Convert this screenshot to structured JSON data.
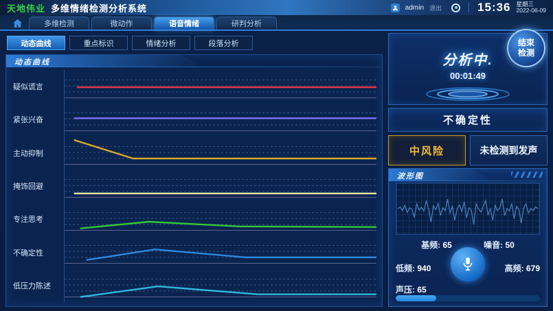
{
  "header": {
    "logo": "天地伟业",
    "title": "多维情绪检测分析系统",
    "user": "admin",
    "logout": "退出",
    "time": "15:36",
    "weekday": "星期三",
    "date": "2022-06-09"
  },
  "main_tabs": [
    {
      "label": "多维检测",
      "active": false
    },
    {
      "label": "微动作",
      "active": false
    },
    {
      "label": "语音情绪",
      "active": true
    },
    {
      "label": "研判分析",
      "active": false
    }
  ],
  "sub_tabs": [
    {
      "label": "动态曲线",
      "active": true
    },
    {
      "label": "重点标识",
      "active": false
    },
    {
      "label": "情绪分析",
      "active": false
    },
    {
      "label": "段落分析",
      "active": false
    }
  ],
  "panel": {
    "title": "动态曲线"
  },
  "chart_data": {
    "type": "line",
    "title": "动态曲线",
    "xlabel": "",
    "ylabel": "",
    "legend_position": "left-row-labels",
    "grid": "dashed-horizontal",
    "rows": [
      {
        "label": "疑似谎言",
        "color": "#e6333f",
        "points": [
          [
            4,
            52
          ],
          [
            100,
            52
          ]
        ]
      },
      {
        "label": "紧张兴奋",
        "color": "#7a6cf0",
        "points": [
          [
            3,
            46
          ],
          [
            100,
            46
          ]
        ]
      },
      {
        "label": "主动抑制",
        "color": "#d9a928",
        "points": [
          [
            3,
            10
          ],
          [
            22,
            66
          ],
          [
            100,
            66
          ]
        ]
      },
      {
        "label": "掩饰回避",
        "color": "#e9e9a8",
        "points": [
          [
            3,
            72
          ],
          [
            100,
            72
          ]
        ]
      },
      {
        "label": "专注思考",
        "color": "#37c837",
        "points": [
          [
            5,
            78
          ],
          [
            27,
            58
          ],
          [
            56,
            72
          ],
          [
            100,
            74
          ]
        ]
      },
      {
        "label": "不确定性",
        "color": "#2e86de",
        "points": [
          [
            7,
            74
          ],
          [
            29,
            42
          ],
          [
            58,
            66
          ],
          [
            100,
            66
          ]
        ]
      },
      {
        "label": "低压力陈述",
        "color": "#30b8dc",
        "points": [
          [
            5,
            84
          ],
          [
            30,
            52
          ],
          [
            62,
            76
          ],
          [
            100,
            76
          ]
        ]
      }
    ]
  },
  "analysis": {
    "status": "分析中.",
    "timer": "00:01:49",
    "stop_button": "结束\n检测"
  },
  "uncertainty_label": "不确定性",
  "risk": {
    "level": "中风险",
    "level_color": "#f2bb3d",
    "voice_status": "未检测到发声"
  },
  "waveform": {
    "title": "波形图",
    "points": [
      50,
      54,
      46,
      57,
      42,
      52,
      48,
      32,
      60,
      47,
      53,
      45,
      66,
      50,
      22,
      56,
      48,
      61,
      36,
      52,
      46,
      70,
      41,
      55,
      26,
      50,
      58,
      44,
      64,
      31,
      52,
      47,
      17,
      60,
      50,
      43,
      55,
      67,
      38,
      50,
      26,
      57,
      46,
      52,
      70,
      36,
      50,
      45,
      61,
      29,
      55,
      48,
      20,
      52,
      60,
      41,
      50,
      46,
      54,
      50
    ]
  },
  "voice": {
    "base_freq_label": "基频:",
    "base_freq": "65",
    "noise_label": "噪音:",
    "noise": "50",
    "low_freq_label": "低频:",
    "low_freq": "940",
    "high_freq_label": "高频:",
    "high_freq": "679",
    "pressure_label": "声压:",
    "pressure": "65",
    "pressure_percent": 28
  },
  "colors": {
    "accent": "#2f7ad1",
    "active_tab": "#1256aa",
    "risk_gold": "#f2bb3d",
    "panel_border": "#2a66b5"
  }
}
